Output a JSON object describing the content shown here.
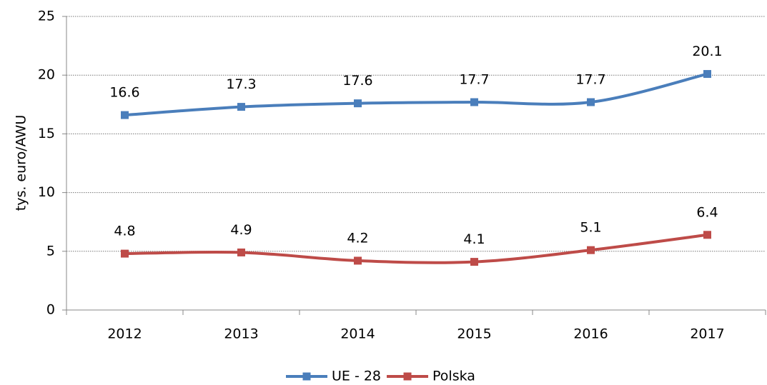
{
  "chart_data": {
    "type": "line",
    "y_label": "tys. euro/AWU",
    "categories": [
      "2012",
      "2013",
      "2014",
      "2015",
      "2016",
      "2017"
    ],
    "series": [
      {
        "name": "UE - 28",
        "color": "#4a7ebb",
        "values": [
          16.6,
          17.3,
          17.6,
          17.7,
          17.7,
          20.1
        ]
      },
      {
        "name": "Polska",
        "color": "#be4b48",
        "values": [
          4.8,
          4.9,
          4.2,
          4.1,
          5.1,
          6.4
        ]
      }
    ],
    "ylim": [
      0,
      25
    ],
    "yticks": [
      0,
      5,
      10,
      15,
      20,
      25
    ],
    "grid": true,
    "smooth": true,
    "legend": "bottom"
  }
}
